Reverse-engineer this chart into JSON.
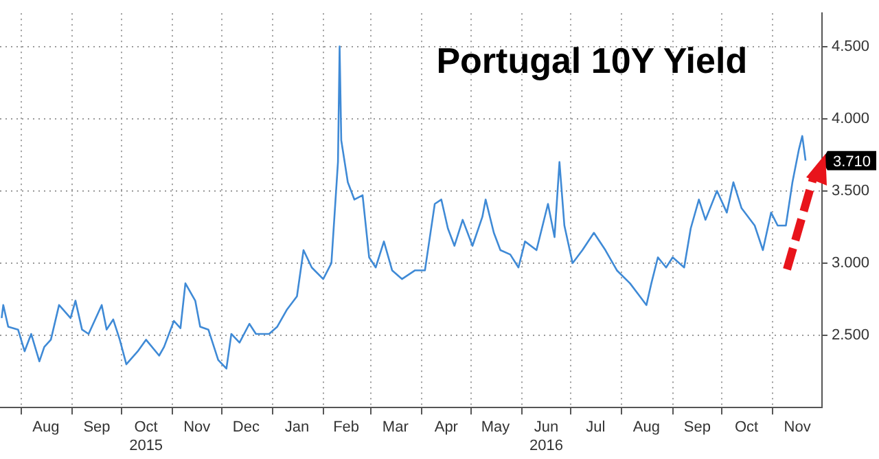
{
  "chart_data": {
    "type": "line",
    "title": "Portugal 10Y Yield",
    "x": [
      "2015-07-20",
      "2015-07-21",
      "2015-07-24",
      "2015-07-30",
      "2015-08-03",
      "2015-08-07",
      "2015-08-12",
      "2015-08-15",
      "2015-08-19",
      "2015-08-24",
      "2015-08-31",
      "2015-09-03",
      "2015-09-07",
      "2015-09-11",
      "2015-09-19",
      "2015-09-22",
      "2015-09-26",
      "2015-09-30",
      "2015-10-04",
      "2015-10-11",
      "2015-10-16",
      "2015-10-24",
      "2015-10-27",
      "2015-11-02",
      "2015-11-06",
      "2015-11-09",
      "2015-11-15",
      "2015-11-18",
      "2015-11-23",
      "2015-11-29",
      "2015-12-04",
      "2015-12-07",
      "2015-12-12",
      "2015-12-18",
      "2015-12-22",
      "2015-12-30",
      "2016-01-04",
      "2016-01-10",
      "2016-01-16",
      "2016-01-20",
      "2016-01-25",
      "2016-02-01",
      "2016-02-06",
      "2016-02-10",
      "2016-02-11",
      "2016-02-12",
      "2016-02-16",
      "2016-02-20",
      "2016-02-25",
      "2016-02-29",
      "2016-03-04",
      "2016-03-09",
      "2016-03-14",
      "2016-03-20",
      "2016-03-28",
      "2016-04-03",
      "2016-04-06",
      "2016-04-09",
      "2016-04-13",
      "2016-04-17",
      "2016-04-21",
      "2016-04-26",
      "2016-05-02",
      "2016-05-08",
      "2016-05-10",
      "2016-05-15",
      "2016-05-19",
      "2016-05-25",
      "2016-05-30",
      "2016-06-03",
      "2016-06-10",
      "2016-06-17",
      "2016-06-21",
      "2016-06-24",
      "2016-06-27",
      "2016-07-02",
      "2016-07-08",
      "2016-07-15",
      "2016-07-22",
      "2016-07-29",
      "2016-08-06",
      "2016-08-12",
      "2016-08-16",
      "2016-08-19",
      "2016-08-23",
      "2016-08-28",
      "2016-09-01",
      "2016-09-08",
      "2016-09-12",
      "2016-09-17",
      "2016-09-21",
      "2016-09-28",
      "2016-10-04",
      "2016-10-08",
      "2016-10-13",
      "2016-10-21",
      "2016-10-26",
      "2016-10-31",
      "2016-11-04",
      "2016-11-09",
      "2016-11-13",
      "2016-11-17",
      "2016-11-19",
      "2016-11-21"
    ],
    "series": [
      {
        "color": "#3f8ad6",
        "values": [
          2.62,
          2.71,
          2.56,
          2.54,
          2.39,
          2.51,
          2.32,
          2.42,
          2.47,
          2.71,
          2.62,
          2.74,
          2.54,
          2.51,
          2.71,
          2.54,
          2.61,
          2.47,
          2.3,
          2.39,
          2.47,
          2.36,
          2.42,
          2.6,
          2.55,
          2.86,
          2.74,
          2.56,
          2.54,
          2.33,
          2.27,
          2.51,
          2.45,
          2.58,
          2.51,
          2.51,
          2.56,
          2.68,
          2.77,
          3.09,
          2.97,
          2.89,
          3.0,
          3.7,
          4.5,
          3.85,
          3.56,
          3.44,
          3.47,
          3.04,
          2.97,
          3.15,
          2.95,
          2.89,
          2.95,
          2.95,
          3.18,
          3.41,
          3.44,
          3.24,
          3.12,
          3.3,
          3.12,
          3.32,
          3.44,
          3.21,
          3.09,
          3.06,
          2.97,
          3.15,
          3.09,
          3.41,
          3.18,
          3.7,
          3.26,
          3.0,
          3.09,
          3.21,
          3.09,
          2.95,
          2.86,
          2.77,
          2.71,
          2.86,
          3.04,
          2.97,
          3.04,
          2.97,
          3.24,
          3.44,
          3.3,
          3.5,
          3.35,
          3.56,
          3.38,
          3.26,
          3.09,
          3.35,
          3.26,
          3.26,
          3.56,
          3.79,
          3.88,
          3.71
        ]
      }
    ],
    "xlim": [
      "2015-07-19",
      "2016-12-01"
    ],
    "xticks": [
      {
        "value": "2015-08-01",
        "label": null
      },
      {
        "value": "2015-08-16",
        "label": "Aug"
      },
      {
        "value": "2015-09-01",
        "label": null
      },
      {
        "value": "2015-09-16",
        "label": "Sep"
      },
      {
        "value": "2015-10-01",
        "label": null
      },
      {
        "value": "2015-10-16",
        "label": "Oct\n2015"
      },
      {
        "value": "2015-11-01",
        "label": null
      },
      {
        "value": "2015-11-16",
        "label": "Nov"
      },
      {
        "value": "2015-12-01",
        "label": null
      },
      {
        "value": "2015-12-16",
        "label": "Dec"
      },
      {
        "value": "2016-01-01",
        "label": null
      },
      {
        "value": "2016-01-16",
        "label": "Jan"
      },
      {
        "value": "2016-02-01",
        "label": null
      },
      {
        "value": "2016-02-15",
        "label": "Feb"
      },
      {
        "value": "2016-03-01",
        "label": null
      },
      {
        "value": "2016-03-16",
        "label": "Mar"
      },
      {
        "value": "2016-04-01",
        "label": null
      },
      {
        "value": "2016-04-16",
        "label": "Apr"
      },
      {
        "value": "2016-05-01",
        "label": null
      },
      {
        "value": "2016-05-16",
        "label": "May"
      },
      {
        "value": "2016-06-01",
        "label": null
      },
      {
        "value": "2016-06-16",
        "label": "Jun\n2016"
      },
      {
        "value": "2016-07-01",
        "label": null
      },
      {
        "value": "2016-07-16",
        "label": "Jul"
      },
      {
        "value": "2016-08-01",
        "label": null
      },
      {
        "value": "2016-08-16",
        "label": "Aug"
      },
      {
        "value": "2016-09-01",
        "label": null
      },
      {
        "value": "2016-09-16",
        "label": "Sep"
      },
      {
        "value": "2016-10-01",
        "label": null
      },
      {
        "value": "2016-10-16",
        "label": "Oct"
      },
      {
        "value": "2016-11-01",
        "label": null
      },
      {
        "value": "2016-11-16",
        "label": "Nov"
      }
    ],
    "ylim": [
      2.0,
      4.73
    ],
    "yticks": [
      {
        "value": 2.5,
        "label": "2.500"
      },
      {
        "value": 3.0,
        "label": "3.000"
      },
      {
        "value": 3.5,
        "label": "3.500"
      },
      {
        "value": 4.0,
        "label": "4.000"
      },
      {
        "value": 4.5,
        "label": "4.500"
      }
    ],
    "annotations": [
      "3.710"
    ],
    "grid": true,
    "legend": false,
    "marker": "none",
    "line_style": "solid"
  }
}
